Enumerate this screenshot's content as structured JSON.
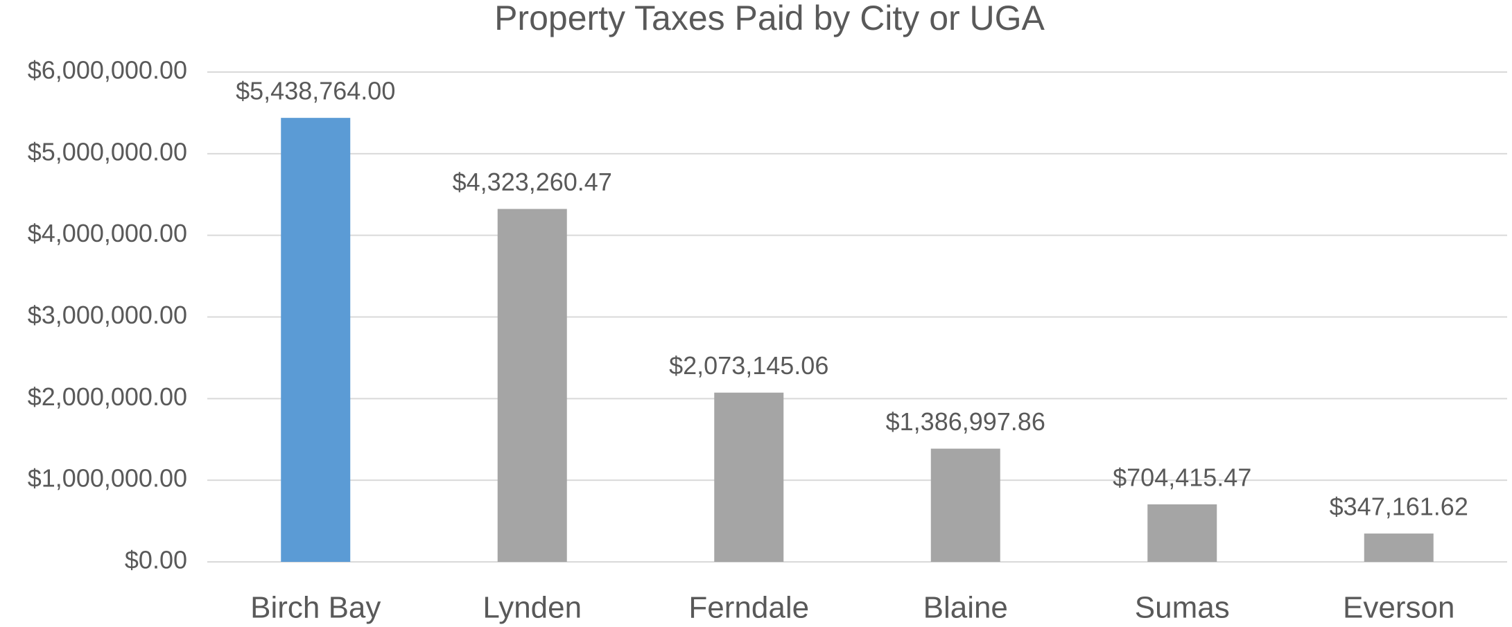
{
  "chart_data": {
    "type": "bar",
    "title": "Property Taxes Paid by City or UGA",
    "categories": [
      "Birch Bay",
      "Lynden",
      "Ferndale",
      "Blaine",
      "Sumas",
      "Everson"
    ],
    "values": [
      5438764.0,
      4323260.47,
      2073145.06,
      1386997.86,
      704415.47,
      347161.62
    ],
    "value_labels": [
      "$5,438,764.00",
      "$4,323,260.47",
      "$2,073,145.06",
      "$1,386,997.86",
      "$704,415.47",
      "$347,161.62"
    ],
    "colors": [
      "#5b9bd5",
      "#a5a5a5",
      "#a5a5a5",
      "#a5a5a5",
      "#a5a5a5",
      "#a5a5a5"
    ],
    "ylim": [
      0,
      6000000
    ],
    "yticks": [
      {
        "value": 0,
        "label": "$0.00"
      },
      {
        "value": 1000000,
        "label": "$1,000,000.00"
      },
      {
        "value": 2000000,
        "label": "$2,000,000.00"
      },
      {
        "value": 3000000,
        "label": "$3,000,000.00"
      },
      {
        "value": 4000000,
        "label": "$4,000,000.00"
      },
      {
        "value": 5000000,
        "label": "$5,000,000.00"
      },
      {
        "value": 6000000,
        "label": "$6,000,000.00"
      }
    ],
    "grid": true
  }
}
